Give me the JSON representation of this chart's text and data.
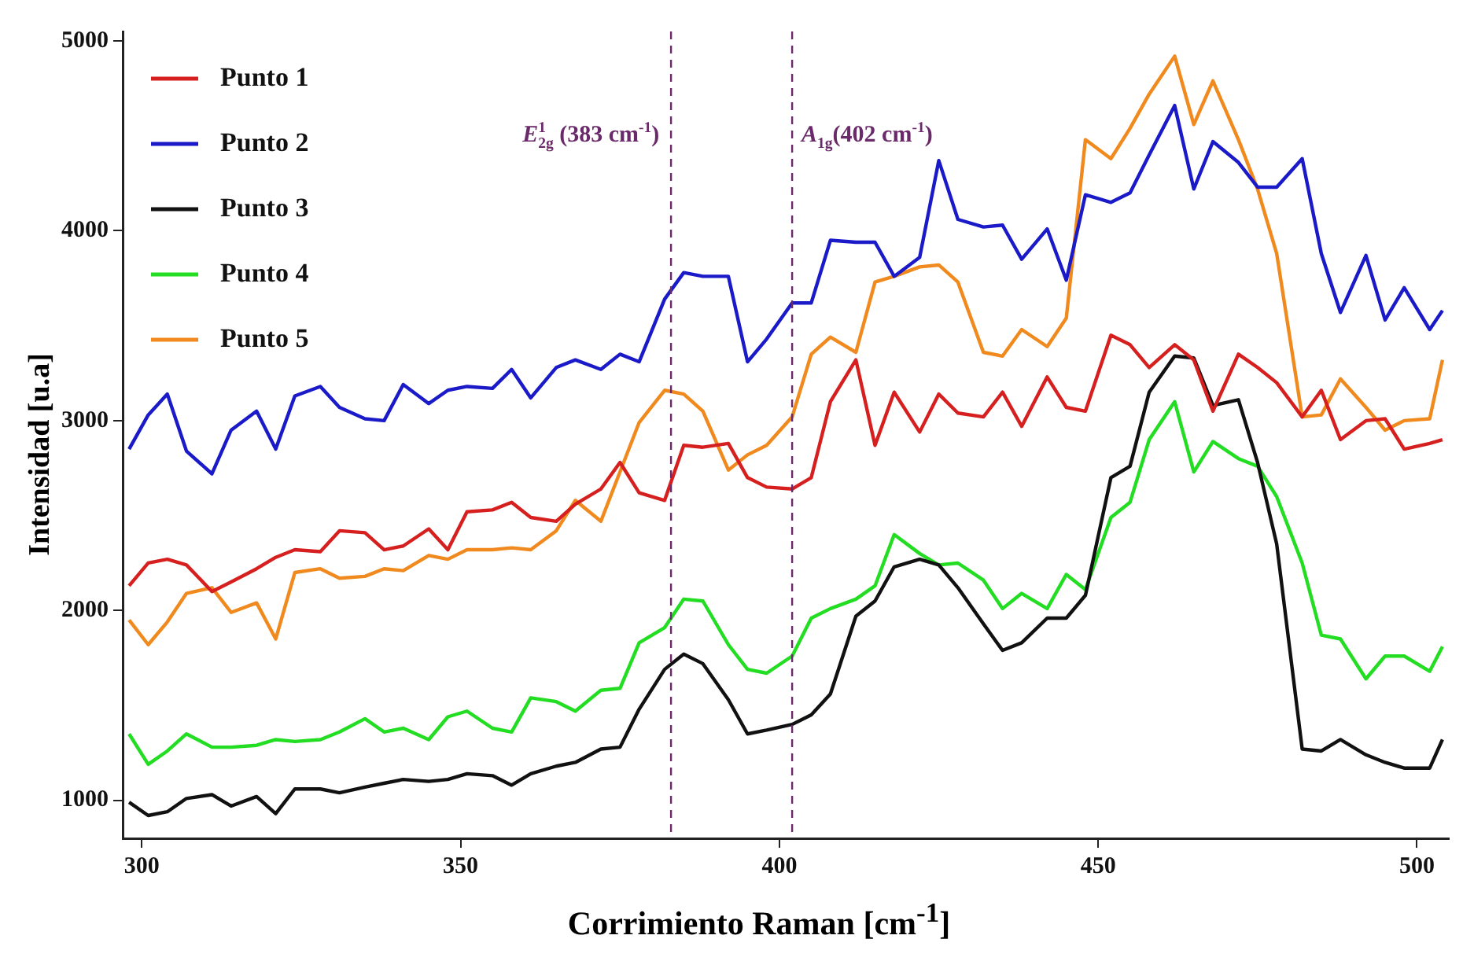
{
  "chart_data": {
    "type": "line",
    "xlabel": "Corrimiento Raman [cm$^{-1}$]",
    "ylabel": "Intensidad [u.a]",
    "x": [
      298,
      301,
      304,
      307,
      311,
      314,
      318,
      321,
      324,
      328,
      331,
      335,
      338,
      341,
      345,
      348,
      351,
      355,
      358,
      361,
      365,
      368,
      372,
      375,
      378,
      382,
      385,
      388,
      392,
      395,
      398,
      402,
      405,
      408,
      412,
      415,
      418,
      422,
      425,
      428,
      432,
      435,
      438,
      442,
      445,
      448,
      452,
      455,
      458,
      462,
      465,
      468,
      472,
      475,
      478,
      482,
      485,
      488,
      492,
      495,
      498,
      502,
      504
    ],
    "series": [
      {
        "name": "Punto 1",
        "color": "#d62020",
        "values": [
          2130,
          2250,
          2270,
          2240,
          2100,
          2150,
          2220,
          2280,
          2320,
          2310,
          2420,
          2410,
          2320,
          2340,
          2430,
          2320,
          2520,
          2530,
          2570,
          2490,
          2470,
          2560,
          2640,
          2780,
          2620,
          2580,
          2870,
          2860,
          2880,
          2700,
          2650,
          2640,
          2700,
          3100,
          3320,
          2870,
          3150,
          2940,
          3140,
          3040,
          3020,
          3150,
          2970,
          3230,
          3070,
          3050,
          3450,
          3400,
          3280,
          3400,
          3320,
          3050,
          3350,
          3280,
          3200,
          3020,
          3160,
          2900,
          3000,
          3010,
          2850,
          2880,
          2900
        ]
      },
      {
        "name": "Punto 2",
        "color": "#1a1ac8",
        "values": [
          2850,
          3030,
          3140,
          2840,
          2720,
          2950,
          3050,
          2850,
          3130,
          3180,
          3070,
          3010,
          3000,
          3190,
          3090,
          3160,
          3180,
          3170,
          3270,
          3120,
          3280,
          3320,
          3270,
          3350,
          3310,
          3640,
          3780,
          3760,
          3760,
          3310,
          3430,
          3620,
          3620,
          3950,
          3940,
          3940,
          3760,
          3860,
          4370,
          4060,
          4020,
          4030,
          3850,
          4010,
          3740,
          4190,
          4150,
          4200,
          4400,
          4660,
          4220,
          4470,
          4360,
          4230,
          4230,
          4380,
          3880,
          3570,
          3870,
          3530,
          3700,
          3480,
          3580
        ]
      },
      {
        "name": "Punto 3",
        "color": "#111111",
        "values": [
          990,
          920,
          940,
          1010,
          1030,
          970,
          1020,
          930,
          1060,
          1060,
          1040,
          1070,
          1090,
          1110,
          1100,
          1110,
          1140,
          1130,
          1080,
          1140,
          1180,
          1200,
          1270,
          1280,
          1480,
          1690,
          1770,
          1720,
          1530,
          1350,
          1370,
          1400,
          1450,
          1560,
          1970,
          2050,
          2230,
          2270,
          2240,
          2120,
          1930,
          1790,
          1830,
          1960,
          1960,
          2080,
          2700,
          2760,
          3150,
          3340,
          3330,
          3080,
          3110,
          2780,
          2350,
          1270,
          1260,
          1320,
          1240,
          1200,
          1170,
          1170,
          1320
        ]
      },
      {
        "name": "Punto 4",
        "color": "#22dd22",
        "values": [
          1350,
          1190,
          1260,
          1350,
          1280,
          1280,
          1290,
          1320,
          1310,
          1320,
          1360,
          1430,
          1360,
          1380,
          1320,
          1440,
          1470,
          1380,
          1360,
          1540,
          1520,
          1470,
          1580,
          1590,
          1830,
          1910,
          2060,
          2050,
          1820,
          1690,
          1670,
          1760,
          1960,
          2010,
          2060,
          2130,
          2400,
          2300,
          2240,
          2250,
          2160,
          2010,
          2090,
          2010,
          2190,
          2110,
          2490,
          2570,
          2900,
          3100,
          2730,
          2890,
          2800,
          2760,
          2600,
          2250,
          1870,
          1850,
          1640,
          1760,
          1760,
          1680,
          1810
        ]
      },
      {
        "name": "Punto 5",
        "color": "#f08a1e",
        "values": [
          1950,
          1820,
          1940,
          2090,
          2120,
          1990,
          2040,
          1850,
          2200,
          2220,
          2170,
          2180,
          2220,
          2210,
          2290,
          2270,
          2320,
          2320,
          2330,
          2320,
          2420,
          2580,
          2470,
          2730,
          2990,
          3160,
          3140,
          3050,
          2740,
          2820,
          2870,
          3020,
          3350,
          3440,
          3360,
          3730,
          3760,
          3810,
          3820,
          3730,
          3360,
          3340,
          3480,
          3390,
          3540,
          4480,
          4380,
          4540,
          4720,
          4920,
          4560,
          4790,
          4480,
          4220,
          3880,
          3020,
          3030,
          3220,
          3070,
          2950,
          3000,
          3010,
          3320
        ]
      }
    ],
    "xlim": [
      297,
      505
    ],
    "xticks": [
      300,
      350,
      400,
      450,
      500
    ],
    "ylim": [
      800,
      5050
    ],
    "yticks": [
      1000,
      2000,
      3000,
      4000,
      5000
    ],
    "ref_lines": [
      {
        "axis": "x",
        "value": 383,
        "label": "E$_{2g}$$^{1}$ (383 cm$^{-1}$)",
        "color": "#6a2a6a",
        "line_style": "dashed"
      },
      {
        "axis": "x",
        "value": 402,
        "label": "A$_{1g}$(402 cm$^{-1}$)",
        "color": "#6a2a6a",
        "line_style": "dashed"
      }
    ],
    "legend": "top left",
    "grid": false,
    "marker": "none",
    "line_style": "solid"
  }
}
